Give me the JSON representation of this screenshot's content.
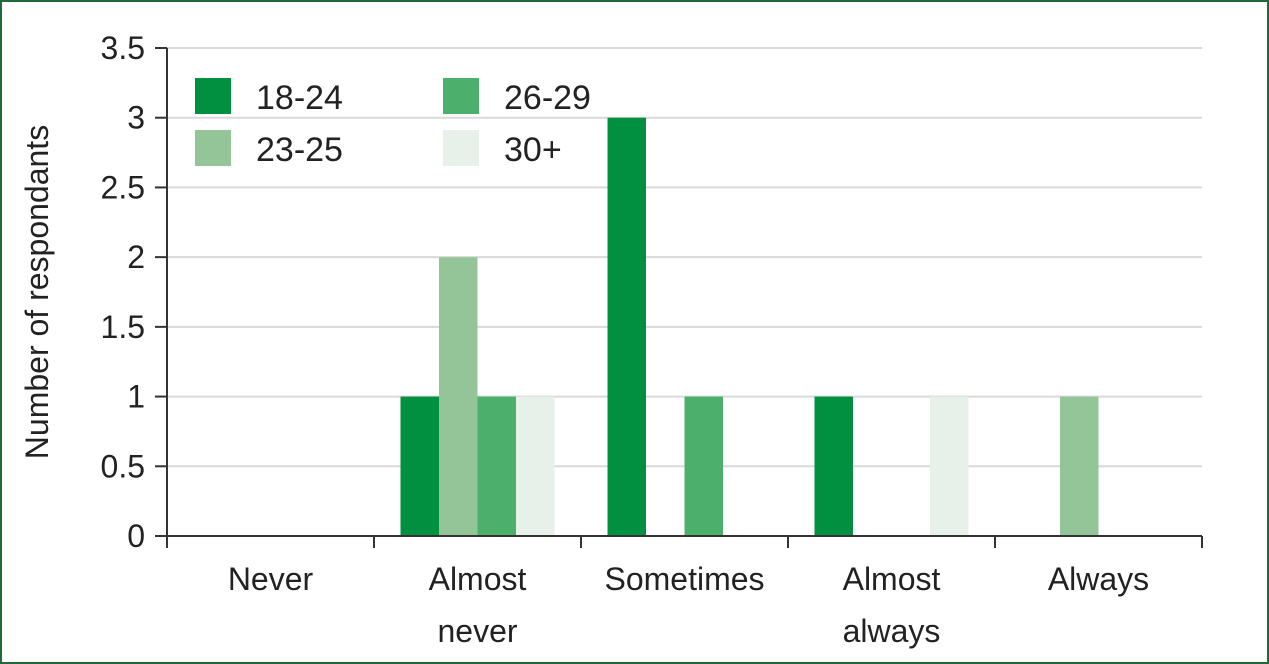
{
  "chart_data": {
    "type": "bar",
    "categories": [
      [
        "Never"
      ],
      [
        "Almost",
        "never"
      ],
      [
        "Sometimes"
      ],
      [
        "Almost",
        "always"
      ],
      [
        "Always"
      ]
    ],
    "series": [
      {
        "name": "18-24",
        "color": "#00903f",
        "values": [
          0,
          1,
          3,
          1,
          0
        ]
      },
      {
        "name": "23-25",
        "color": "#93c599",
        "values": [
          0,
          2,
          0,
          0,
          1
        ]
      },
      {
        "name": "26-29",
        "color": "#4daf6c",
        "values": [
          0,
          1,
          1,
          0,
          0
        ]
      },
      {
        "name": "30+",
        "color": "#e7f1e9",
        "values": [
          0,
          1,
          0,
          1,
          0
        ]
      }
    ],
    "ylabel": "Number of respondants",
    "ylim": [
      0,
      3.5
    ],
    "yticks": [
      "0",
      "0.5",
      "1",
      "1.5",
      "2",
      "2.5",
      "3",
      "3.5"
    ],
    "grid": true,
    "legend_position": "top-left"
  },
  "colors": {
    "frame": "#1e6b3a",
    "grid": "#d9d9d9",
    "axis": "#333333"
  }
}
